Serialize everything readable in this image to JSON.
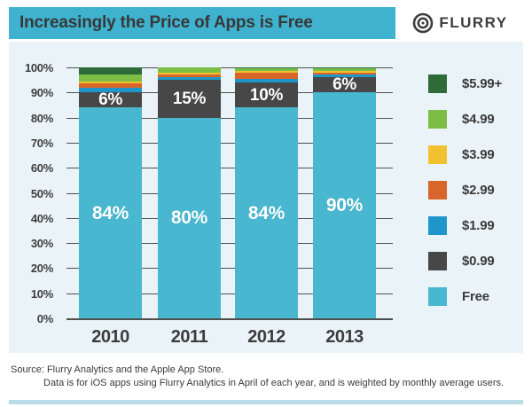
{
  "header": {
    "title": "Increasingly the Price of Apps is Free",
    "brand": "FLURRY"
  },
  "colors": {
    "header_band": "#3FB2CF",
    "panel_background": "#EAF4F8",
    "gridline": "#4F4F4F",
    "text_dark": "#3A3A3A",
    "bar_label_text": "#FFFFFF",
    "bottom_strip": "#B9DCE8"
  },
  "chart_data": {
    "type": "bar",
    "subtype": "stacked-100-percent",
    "title": "Increasingly the Price of Apps is Free",
    "categories": [
      "2010",
      "2011",
      "2012",
      "2013"
    ],
    "series": [
      {
        "name": "Free",
        "color": "#49B7CF",
        "values": [
          84,
          80,
          84,
          90
        ]
      },
      {
        "name": "$0.99",
        "color": "#474747",
        "values": [
          6,
          15,
          10,
          6
        ]
      },
      {
        "name": "$1.99",
        "color": "#1E96CB",
        "values": [
          2,
          1,
          1.5,
          1
        ]
      },
      {
        "name": "$2.99",
        "color": "#D8662A",
        "values": [
          1.5,
          1.2,
          2.5,
          1
        ]
      },
      {
        "name": "$3.99",
        "color": "#F2C12F",
        "values": [
          1,
          0.8,
          0.7,
          0.5
        ]
      },
      {
        "name": "$4.99",
        "color": "#7CBE45",
        "values": [
          2.5,
          2,
          0.8,
          1.3
        ]
      },
      {
        "name": "$5.99+",
        "color": "#2E6B38",
        "values": [
          3,
          0,
          0.5,
          0.2
        ]
      }
    ],
    "labeled_values": {
      "Free": [
        "84%",
        "80%",
        "84%",
        "90%"
      ],
      "$0.99": [
        "6%",
        "15%",
        "10%",
        "6%"
      ]
    },
    "ylim": [
      0,
      100
    ],
    "y_tick_step": 10,
    "y_tick_suffix": "%",
    "grid": true,
    "legend_position": "right",
    "legend_order_top_to_bottom": [
      "$5.99+",
      "$4.99",
      "$3.99",
      "$2.99",
      "$1.99",
      "$0.99",
      "Free"
    ]
  },
  "footer": {
    "source_line1": "Source: Flurry Analytics and the Apple App Store.",
    "source_line2": "Data is for iOS apps using Flurry Analytics in April of each year, and is weighted by monthly average users."
  }
}
